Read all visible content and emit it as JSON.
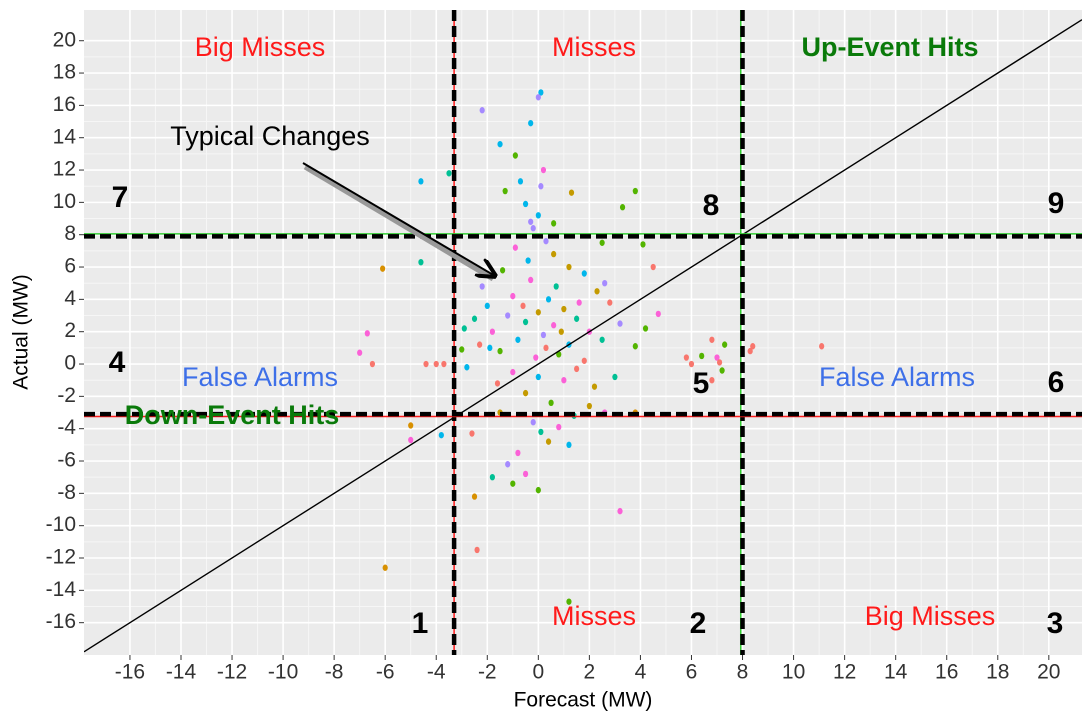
{
  "chart_data": {
    "type": "scatter",
    "x_label": "Forecast (MW)",
    "y_label": "Actual (MW)",
    "xlim": [
      -17.8,
      21.3
    ],
    "ylim": [
      -18.0,
      21.9
    ],
    "xticks": [
      -16,
      -14,
      -12,
      -10,
      -8,
      -6,
      -4,
      -2,
      0,
      2,
      4,
      6,
      8,
      10,
      12,
      14,
      16,
      18,
      20
    ],
    "yticks": [
      -16,
      -14,
      -12,
      -10,
      -8,
      -6,
      -4,
      -2,
      0,
      2,
      4,
      6,
      8,
      10,
      12,
      14,
      16,
      18,
      20
    ],
    "grid": true,
    "abline": {
      "slope": 1,
      "intercept": 0,
      "color": "#000000"
    },
    "vlines": [
      {
        "x": -3.3,
        "color": "#ff1a1a",
        "dashed": false
      },
      {
        "x": 7.93,
        "color": "#33cc33",
        "dashed": false
      },
      {
        "x": -3.3,
        "color": "#000000",
        "dashed": true
      },
      {
        "x": 8.0,
        "color": "#000000",
        "dashed": true
      }
    ],
    "hlines": [
      {
        "y": -3.25,
        "color": "#ff1a1a",
        "dashed": false
      },
      {
        "y": 8.05,
        "color": "#33cc33",
        "dashed": false
      },
      {
        "y": -3.1,
        "color": "#000000",
        "dashed": true
      },
      {
        "y": 7.9,
        "color": "#000000",
        "dashed": true
      }
    ],
    "annotations": [
      "Big Misses",
      "Misses",
      "Up-Event Hits",
      "Typical Changes",
      "7",
      "8",
      "9",
      "4",
      "False Alarms",
      "5",
      "False Alarms",
      "6",
      "Down-Event Hits",
      "1",
      "Misses",
      "2",
      "Big Misses",
      "3"
    ],
    "x": [
      -4.6,
      -3.5,
      -6.1,
      -4.6,
      -6.7,
      -7.0,
      -6.5,
      -4.4,
      -4.0,
      -3.7,
      -5.0,
      -5.0,
      -3.8,
      -6.0,
      -2.4,
      -2.5,
      1.2,
      3.2,
      0.1,
      0.0,
      -2.2,
      -1.5,
      -0.3,
      -0.9,
      0.2,
      -0.7,
      -1.3,
      3.8,
      3.3,
      0.1,
      1.3,
      -0.5,
      -0.3,
      0.6,
      5.8,
      6.0,
      6.4,
      6.8,
      7.0,
      7.1,
      7.2,
      6.8,
      7.3,
      8.3,
      8.4,
      11.1,
      4.2,
      4.5,
      4.7,
      4.1,
      2.5,
      3.8,
      2.6,
      3.8,
      -2.2,
      -2.5,
      -2.3,
      -2.0,
      -1.8,
      -1.5,
      -1.2,
      -1.0,
      -0.8,
      -0.5,
      -0.3,
      0.0,
      0.2,
      0.4,
      0.6,
      0.8,
      1.0,
      1.2,
      1.5,
      1.8,
      2.0,
      2.3,
      2.5,
      2.8,
      3.2,
      -1.6,
      -1.0,
      -0.5,
      0.0,
      0.5,
      1.0,
      1.5,
      2.2,
      -0.2,
      0.4,
      -0.8,
      -1.2,
      0.1,
      0.8,
      1.2,
      -1.8,
      -1.0,
      0.0,
      -0.5,
      1.4,
      -2.6,
      -1.5,
      -0.4,
      0.6,
      -0.9,
      0.3,
      1.2,
      1.8,
      -1.4,
      2.6,
      -2.8,
      -3.0,
      -2.9,
      0.9,
      -0.1,
      0.3,
      1.6,
      -0.6,
      0.7,
      -1.9,
      2.0,
      3.0,
      0.0,
      -0.2
    ],
    "y": [
      11.3,
      11.8,
      5.9,
      6.3,
      1.9,
      0.7,
      0.0,
      0.0,
      0.0,
      0.0,
      -3.8,
      -4.7,
      -4.4,
      -12.6,
      -11.5,
      -8.2,
      -14.7,
      -9.1,
      16.8,
      16.5,
      15.7,
      13.6,
      14.9,
      12.9,
      12.0,
      11.3,
      10.7,
      10.7,
      9.7,
      11.0,
      10.6,
      9.9,
      8.8,
      8.7,
      0.4,
      0.0,
      0.5,
      1.5,
      0.4,
      0.1,
      -0.4,
      -1.0,
      1.2,
      0.8,
      1.1,
      1.1,
      2.2,
      6.0,
      3.1,
      7.4,
      7.5,
      1.1,
      -3.0,
      -3.0,
      4.8,
      2.8,
      1.2,
      3.6,
      2.0,
      0.8,
      3.0,
      4.2,
      1.5,
      2.6,
      5.2,
      3.2,
      1.8,
      4.0,
      2.4,
      0.6,
      3.4,
      1.2,
      2.8,
      0.2,
      2.0,
      4.5,
      1.5,
      3.8,
      2.5,
      -1.2,
      -0.5,
      -1.8,
      -0.8,
      -2.4,
      -1.0,
      -0.3,
      -1.4,
      -3.6,
      -4.8,
      -5.5,
      -6.2,
      -4.2,
      -3.9,
      -5.0,
      -7.0,
      -7.4,
      -7.8,
      -6.8,
      -3.2,
      -4.3,
      -3.0,
      6.4,
      6.8,
      7.2,
      7.6,
      6.0,
      5.6,
      5.8,
      5.0,
      -0.2,
      0.9,
      2.2,
      2.0,
      0.4,
      1.0,
      3.8,
      3.6,
      4.8,
      1.0,
      -2.6,
      -0.8,
      9.2,
      8.4
    ],
    "colors": [
      "#00B6EB",
      "#00C094",
      "#D89000",
      "#00C094",
      "#FB61D7",
      "#FB61D7",
      "#F8766D",
      "#F8766D",
      "#F8766D",
      "#F8766D",
      "#D89000",
      "#FB61D7",
      "#00B6EB",
      "#D89000",
      "#F8766D",
      "#D89000",
      "#53B400",
      "#FB61D7",
      "#00B6EB",
      "#A58AFF",
      "#A58AFF",
      "#00B6EB",
      "#00B6EB",
      "#53B400",
      "#FB61D7",
      "#00B6EB",
      "#53B400",
      "#53B400",
      "#53B400",
      "#A58AFF",
      "#C49A00",
      "#00B6EB",
      "#A58AFF",
      "#53B400",
      "#F8766D",
      "#F8766D",
      "#53B400",
      "#F8766D",
      "#FB61D7",
      "#F8766D",
      "#53B400",
      "#F8766D",
      "#53B400",
      "#F8766D",
      "#F8766D",
      "#F8766D",
      "#53B400",
      "#F8766D",
      "#FB61D7",
      "#53B400",
      "#53B400",
      "#53B400",
      "#FB61D7",
      "#D89000",
      "#A58AFF",
      "#00C094",
      "#F8766D",
      "#00B6EB",
      "#FB61D7",
      "#53B400",
      "#A58AFF",
      "#FB61D7",
      "#00B6EB",
      "#00C094",
      "#FB61D7",
      "#C49A00",
      "#A58AFF",
      "#00B6EB",
      "#FB61D7",
      "#53B400",
      "#C49A00",
      "#00B6EB",
      "#00C094",
      "#F8766D",
      "#FB61D7",
      "#C49A00",
      "#00C094",
      "#F8766D",
      "#A58AFF",
      "#F8766D",
      "#FB61D7",
      "#C49A00",
      "#00B6EB",
      "#53B400",
      "#FB61D7",
      "#F8766D",
      "#C49A00",
      "#A58AFF",
      "#C49A00",
      "#FB61D7",
      "#A58AFF",
      "#00C094",
      "#FB61D7",
      "#00B6EB",
      "#00C094",
      "#53B400",
      "#53B400",
      "#FB61D7",
      "#00C094",
      "#F8766D",
      "#C49A00",
      "#00B6EB",
      "#C49A00",
      "#FB61D7",
      "#A58AFF",
      "#C49A00",
      "#00B6EB",
      "#53B400",
      "#A58AFF",
      "#00B6EB",
      "#53B400",
      "#00C094",
      "#C49A00",
      "#FB61D7",
      "#F8766D",
      "#FB61D7",
      "#F8766D",
      "#00C094",
      "#00B6EB",
      "#C49A00",
      "#00C094",
      "#00B6EB",
      "#A58AFF"
    ]
  }
}
